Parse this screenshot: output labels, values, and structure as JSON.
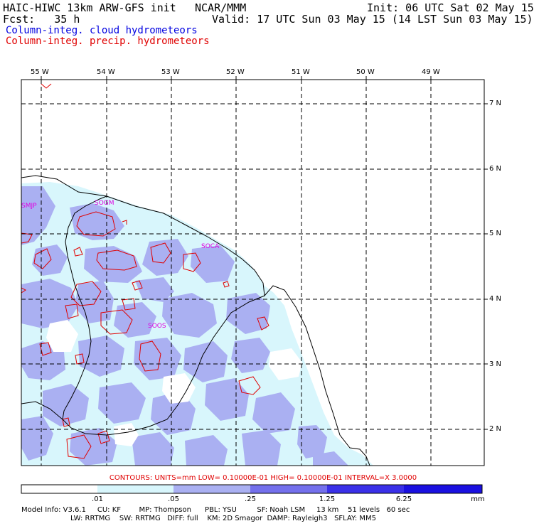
{
  "header": {
    "model_title": "HAIC-HIWC 13km ARW-GFS init",
    "org": "NCAR/MMM",
    "init": "Init: 06 UTC Sat 02 May 15",
    "fcst": "Fcst:   35 h",
    "valid": "Valid: 17 UTC Sun 03 May 15 (14 LST Sun 03 May 15)",
    "field_cloud": "Column-integ. cloud hydrometeors",
    "field_precip": "Column-integ. precip. hydrometeors"
  },
  "colors": {
    "cloud_text": "#0000e0",
    "precip_text": "#e00000",
    "shade_1": "#d8f6fc",
    "shade_2": "#aab0f2",
    "shade_3": "#7470ec",
    "shade_4": "#3a30e8",
    "shade_5": "#1a10e0",
    "contour": "#e00000",
    "station": "#e000e0"
  },
  "longitudes": [
    "55 W",
    "54 W",
    "53 W",
    "52 W",
    "51 W",
    "50 W",
    "49 W"
  ],
  "latitudes": [
    "7 N",
    "6 N",
    "5 N",
    "4 N",
    "3 N",
    "2 N"
  ],
  "stations": [
    "SMJP",
    "SOGM",
    "SOCA",
    "SOOS"
  ],
  "contours_line": "CONTOURS:  UNITS=mm  LOW= 0.10000E-01  HIGH= 0.10000E-01  INTERVAL=X  3.0000",
  "colorbar": {
    "labels": [
      ".01",
      ".05",
      ".25",
      "1.25",
      "6.25"
    ],
    "unit": "mm"
  },
  "model_info": {
    "line1": "Model Info: V3.6.1     CU: KF        MP: Thompson      PBL: YSU         SF: Noah LSM     13 km    51 levels   60 sec",
    "line2": "LW: RRTMG    SW: RRTMG   DIFF: full    KM: 2D Smagor  DAMP: Rayleigh3   SFLAY: MM5"
  }
}
